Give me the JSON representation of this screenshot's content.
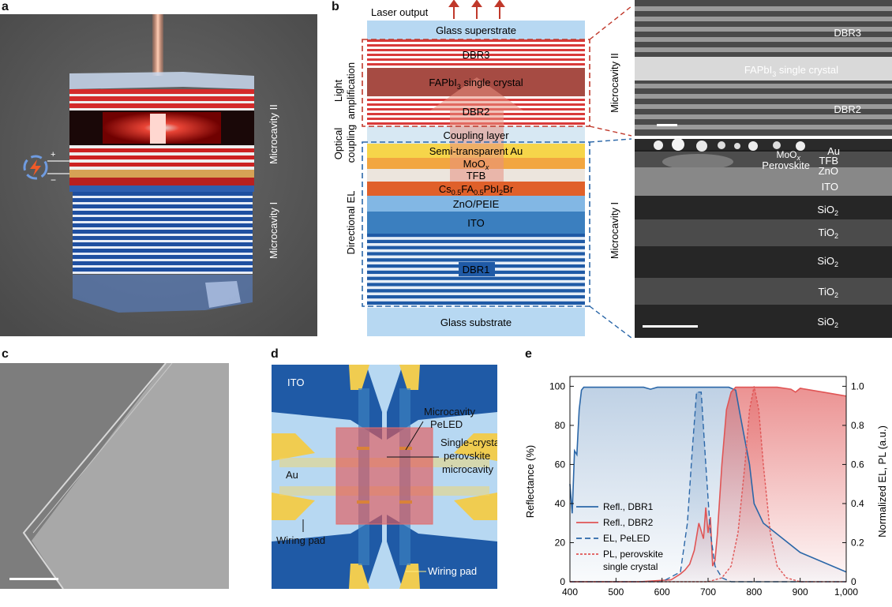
{
  "panel_letters": {
    "a": "a",
    "b": "b",
    "c": "c",
    "d": "d",
    "e": "e"
  },
  "panel_a": {
    "label_microcavity_2": "Microcavity II",
    "label_microcavity_1": "Microcavity I",
    "plus": "+",
    "minus": "−"
  },
  "panel_b": {
    "laser_output": "Laser output",
    "side_light_amplification_1": "Light",
    "side_light_amplification_2": "amplification",
    "side_optical_coupling_1": "Optical",
    "side_optical_coupling_2": "coupling",
    "side_directional_el": "Directional EL",
    "side_microcavity_2": "Microcavity II",
    "side_microcavity_1": "Microcavity I",
    "layers": {
      "glass_superstrate": "Glass superstrate",
      "dbr3": "DBR3",
      "fapbi3": "FAPbI",
      "fapbi3_sub": "3",
      "fapbi3_tail": " single crystal",
      "dbr2": "DBR2",
      "coupling": "Coupling layer",
      "au": "Semi-transparent Au",
      "moox": "MoO",
      "moox_sub": "x",
      "tfb": "TFB",
      "perov_1": "Cs",
      "perov_2": "0.5",
      "perov_3": "FA",
      "perov_4": "0.5",
      "perov_5": "PbI",
      "perov_6": "2",
      "perov_7": "Br",
      "zno": "ZnO/PEIE",
      "ito": "ITO",
      "dbr1": "DBR1",
      "glass_substrate": "Glass substrate"
    },
    "sem_top": {
      "dbr3": "DBR3",
      "fapbi3": "FAPbI",
      "fapbi3_sub": "3",
      "fapbi3_tail": " single crystal",
      "dbr2": "DBR2"
    },
    "sem_bottom": {
      "au": "Au",
      "moox": "MoO",
      "moox_sub": "x",
      "tfb": "TFB",
      "perovskite": "Perovskite",
      "zno": "ZnO",
      "ito": "ITO",
      "sio2_a": "SiO",
      "tio2_a": "TiO",
      "sio2_b": "SiO",
      "tio2_b": "TiO",
      "sio2_c": "SiO",
      "sub2": "2"
    }
  },
  "panel_d": {
    "ito": "ITO",
    "au": "Au",
    "microcavity_pe_1": "Microcavity",
    "microcavity_pe_2": "PeLED",
    "sc_1": "Single-crystal",
    "sc_2": "perovskite",
    "sc_3": "microcavity",
    "wiring_left": "Wiring pad",
    "wiring_right": "Wiring pad"
  },
  "colors": {
    "blue": "#2b67a8",
    "red": "#e05555",
    "dbr_red": "#d93a3a",
    "dbr_blue": "#1f5aa6",
    "glass": "#b7d8f2"
  },
  "chart_data": {
    "type": "line",
    "xlabel": "",
    "ylabel": "Reflectance (%)",
    "y2label": "Normalized EL, PL (a.u.)",
    "xlim": [
      400,
      1000
    ],
    "ylim": [
      0,
      105
    ],
    "y2lim": [
      0,
      1.05
    ],
    "xticks": [
      "400",
      "500",
      "600",
      "700",
      "800",
      "900",
      "1,000"
    ],
    "yticks": [
      "0",
      "20",
      "40",
      "60",
      "80",
      "100"
    ],
    "y2ticks": [
      "0",
      "0.2",
      "0.4",
      "0.6",
      "0.8",
      "1.0"
    ],
    "legend_position": "bottom-left",
    "series": [
      {
        "name": "Refl., DBR1",
        "axis": "left",
        "style": "solid",
        "color": "#2b67a8",
        "x": [
          400,
          405,
          410,
          415,
          420,
          425,
          430,
          440,
          500,
          560,
          575,
          590,
          650,
          700,
          730,
          745,
          760,
          770,
          790,
          800,
          820,
          900,
          1000
        ],
        "y": [
          50,
          35,
          67,
          65,
          88,
          98,
          99.5,
          99.5,
          99.5,
          99.5,
          98.5,
          99.5,
          99.5,
          99.5,
          99.5,
          99.5,
          98,
          85,
          60,
          40,
          30,
          15,
          5
        ]
      },
      {
        "name": "Refl., DBR2",
        "axis": "left",
        "style": "solid",
        "color": "#e05555",
        "x": [
          400,
          550,
          620,
          640,
          650,
          660,
          670,
          680,
          690,
          695,
          700,
          705,
          710,
          715,
          720,
          730,
          740,
          750,
          760,
          770,
          790,
          800,
          850,
          880,
          890,
          900,
          950,
          1000
        ],
        "y": [
          0,
          0,
          1,
          4,
          6,
          9,
          16,
          30,
          22,
          38,
          25,
          33,
          8,
          11,
          24,
          60,
          88,
          97,
          99.5,
          99.5,
          99.5,
          99.5,
          99.5,
          98.5,
          97,
          99,
          97,
          95
        ]
      },
      {
        "name": "EL, PeLED",
        "axis": "right",
        "style": "dashed",
        "color": "#2b67a8",
        "x": [
          400,
          600,
          640,
          655,
          665,
          675,
          685,
          695,
          705,
          715,
          730,
          750,
          1000
        ],
        "y": [
          0,
          0,
          0.05,
          0.3,
          0.65,
          0.97,
          0.97,
          0.6,
          0.25,
          0.08,
          0.02,
          0,
          0
        ]
      },
      {
        "name": "PL, perovskite single crystal",
        "axis": "right",
        "style": "dashed",
        "color": "#e05555",
        "x": [
          400,
          700,
          730,
          750,
          765,
          780,
          790,
          800,
          810,
          820,
          835,
          850,
          870,
          900,
          1000
        ],
        "y": [
          0,
          0,
          0.02,
          0.08,
          0.25,
          0.6,
          0.88,
          1.0,
          0.88,
          0.6,
          0.25,
          0.08,
          0.02,
          0,
          0
        ]
      }
    ]
  }
}
